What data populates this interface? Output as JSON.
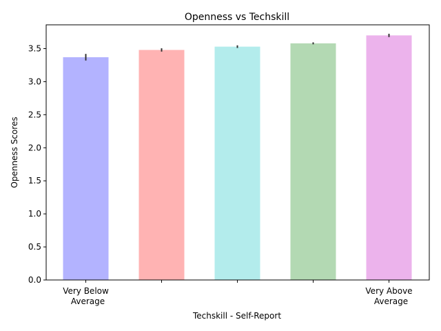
{
  "chart_data": {
    "type": "bar",
    "title": "Openness vs Techskill",
    "xlabel": "Techskill - Self-Report",
    "ylabel": "Openness Scores",
    "categories": [
      "Very Below\nAverage",
      "",
      "",
      "",
      "Very Above\nAverage"
    ],
    "values": [
      3.37,
      3.48,
      3.53,
      3.58,
      3.7
    ],
    "errors": [
      0.05,
      0.025,
      0.02,
      0.015,
      0.025
    ],
    "colors": [
      "#b3b3ff",
      "#ffb3b3",
      "#b3ecec",
      "#b3d9b3",
      "#ecb3ec"
    ],
    "error_color": "#333333",
    "ylim": [
      0,
      3.86
    ],
    "yticks": [
      0.0,
      0.5,
      1.0,
      1.5,
      2.0,
      2.5,
      3.0,
      3.5
    ],
    "ytick_labels": [
      "0.0",
      "0.5",
      "1.0",
      "1.5",
      "2.0",
      "2.5",
      "3.0",
      "3.5"
    ],
    "grid": false,
    "legend": "none"
  }
}
